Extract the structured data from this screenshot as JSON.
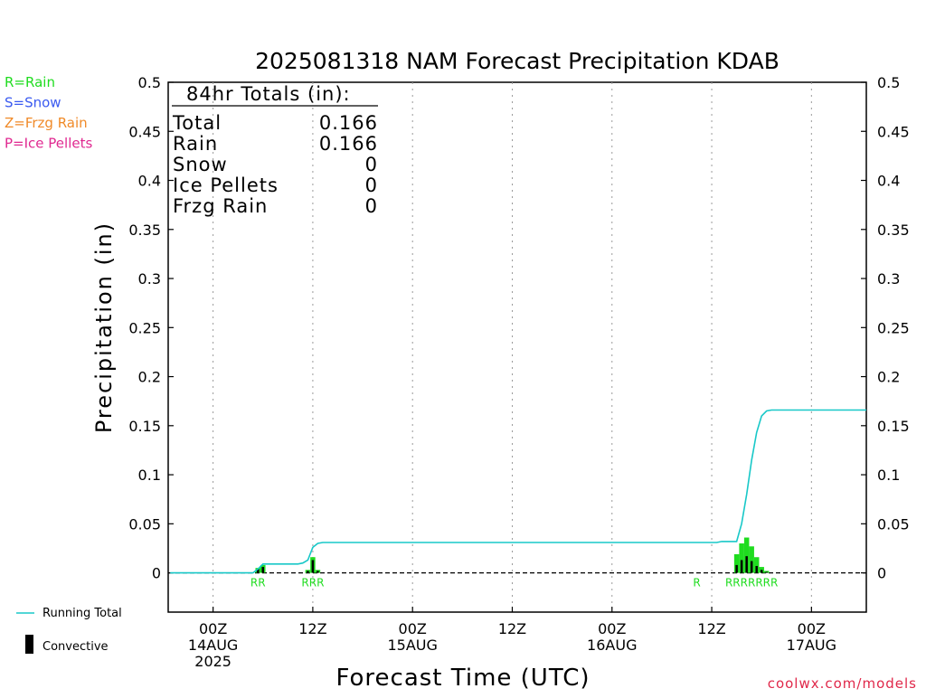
{
  "chart_data": {
    "type": "bar",
    "title": "2025081318 NAM Forecast Precipitation KDAB",
    "xlabel": "Forecast Time (UTC)",
    "ylabel": "Precipitation (in)",
    "ylim": [
      -0.04,
      0.5
    ],
    "yticks": [
      0,
      0.05,
      0.1,
      0.15,
      0.2,
      0.25,
      0.3,
      0.35,
      0.4,
      0.45,
      0.5
    ],
    "yticklabels": [
      "0",
      "0.05",
      "0.1",
      "0.15",
      "0.2",
      "0.25",
      "0.3",
      "0.35",
      "0.4",
      "0.45",
      "0.5"
    ],
    "xlim_hours": [
      -4.5,
      65.5
    ],
    "xticks": [
      {
        "hour": 0,
        "label": [
          "00Z",
          "14AUG",
          "2025"
        ]
      },
      {
        "hour": 10,
        "label": [
          "12Z"
        ]
      },
      {
        "hour": 20,
        "label": [
          "00Z",
          "15AUG"
        ]
      },
      {
        "hour": 30,
        "label": [
          "12Z"
        ]
      },
      {
        "hour": 40,
        "label": [
          "00Z",
          "16AUG"
        ]
      },
      {
        "hour": 50,
        "label": [
          "12Z"
        ]
      },
      {
        "hour": 60,
        "label": [
          "00Z",
          "17AUG"
        ]
      }
    ],
    "grid": true,
    "bar_series": {
      "name": "Precipitation",
      "color": "#1fdc1f",
      "convective_color": "#000000",
      "bars": [
        {
          "hour": 4.5,
          "total": 0.005,
          "convective": 0.004
        },
        {
          "hour": 5.0,
          "total": 0.008,
          "convective": 0.006
        },
        {
          "hour": 9.5,
          "total": 0.003,
          "convective": 0.002
        },
        {
          "hour": 10.0,
          "total": 0.016,
          "convective": 0.013
        },
        {
          "hour": 10.5,
          "total": 0.003,
          "convective": 0.002
        },
        {
          "hour": 52.5,
          "total": 0.019,
          "convective": 0.008
        },
        {
          "hour": 53.0,
          "total": 0.03,
          "convective": 0.013
        },
        {
          "hour": 53.5,
          "total": 0.036,
          "convective": 0.017
        },
        {
          "hour": 54.0,
          "total": 0.027,
          "convective": 0.012
        },
        {
          "hour": 54.5,
          "total": 0.016,
          "convective": 0.007
        },
        {
          "hour": 55.0,
          "total": 0.006,
          "convective": 0.003
        },
        {
          "hour": 55.5,
          "total": 0.002,
          "convective": 0.001
        }
      ]
    },
    "running_total": {
      "name": "Running Total",
      "color": "#18c8c8",
      "points": [
        [
          -4.3,
          0
        ],
        [
          4.0,
          0
        ],
        [
          4.5,
          0.004
        ],
        [
          5.0,
          0.009
        ],
        [
          8.5,
          0.009
        ],
        [
          9.0,
          0.01
        ],
        [
          9.5,
          0.013
        ],
        [
          10.0,
          0.026
        ],
        [
          10.5,
          0.03
        ],
        [
          11.0,
          0.031
        ],
        [
          50.5,
          0.031
        ],
        [
          51.0,
          0.032
        ],
        [
          51.5,
          0.032
        ],
        [
          52.5,
          0.032
        ],
        [
          53.0,
          0.05
        ],
        [
          53.5,
          0.08
        ],
        [
          54.0,
          0.115
        ],
        [
          54.5,
          0.143
        ],
        [
          55.0,
          0.16
        ],
        [
          55.5,
          0.165
        ],
        [
          56.0,
          0.166
        ],
        [
          65.5,
          0.166
        ]
      ]
    },
    "precip_type_labels": [
      {
        "text": "RR",
        "hour": 4.5
      },
      {
        "text": "RRR",
        "hour": 10.0
      },
      {
        "text": "R",
        "hour": 48.5
      },
      {
        "text": "RRRRRRR",
        "hour": 54.0
      }
    ]
  },
  "type_legend": [
    {
      "text": "R=Rain",
      "color": "#1fdc1f"
    },
    {
      "text": "S=Snow",
      "color": "#3a5af0"
    },
    {
      "text": "Z=Frzg Rain",
      "color": "#f08a28"
    },
    {
      "text": "P=Ice Pellets",
      "color": "#e02890"
    }
  ],
  "totals_box": {
    "heading": "84hr Totals (in):",
    "rows": [
      {
        "label": "Total",
        "value": "0.166"
      },
      {
        "label": "Rain",
        "value": "0.166"
      },
      {
        "label": "Snow",
        "value": "0"
      },
      {
        "label": "Ice Pellets",
        "value": "0"
      },
      {
        "label": "Frzg Rain",
        "value": "0"
      }
    ]
  },
  "bottom_legend": {
    "running_total_label": "Running Total",
    "convective_label": "Convective",
    "running_total_color": "#18c8c8",
    "convective_color": "#000000"
  },
  "credit": "coolwx.com/models"
}
